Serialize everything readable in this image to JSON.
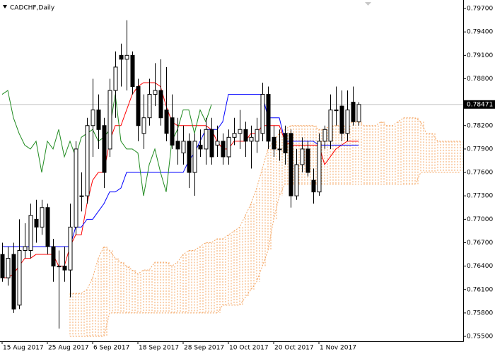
{
  "chart_data": {
    "type": "candlestick",
    "title": "CADCHF,Daily",
    "categories": [
      "15 Aug 2017",
      null,
      null,
      null,
      null,
      null,
      null,
      null,
      "25 Aug 2017",
      null,
      null,
      null,
      null,
      null,
      null,
      null,
      "6 Sep 2017",
      null,
      null,
      null,
      null,
      null,
      null,
      null,
      "18 Sep 2017",
      null,
      null,
      null,
      null,
      null,
      null,
      null,
      "28 Sep 2017",
      null,
      null,
      null,
      null,
      null,
      null,
      null,
      "10 Oct 2017",
      null,
      null,
      null,
      null,
      null,
      null,
      null,
      "20 Oct 2017",
      null,
      null,
      null,
      null,
      null,
      null,
      null,
      "1 Nov 2017",
      null,
      null,
      null,
      null,
      null,
      null,
      null,
      null,
      null,
      null,
      null,
      null,
      null,
      null,
      null,
      null,
      null,
      null,
      null,
      null,
      null,
      null,
      null,
      null,
      null
    ],
    "open": [
      0.7655,
      0.7625,
      0.7655,
      0.759,
      0.766,
      0.766,
      0.77,
      0.769,
      0.7715,
      0.7665,
      0.764,
      0.764,
      0.7635,
      0.769,
      0.773,
      0.773,
      0.782,
      0.784,
      0.782,
      0.779,
      0.7865,
      0.791,
      0.7905,
      0.791,
      0.787,
      0.781,
      0.783,
      0.786,
      0.7865,
      0.784,
      0.783,
      0.78,
      0.7785,
      0.78,
      0.776,
      0.7795,
      0.779,
      0.7815,
      0.7795,
      0.78,
      0.778,
      0.7805,
      0.781,
      0.7815,
      0.78,
      0.78,
      0.781,
      0.786,
      0.7805,
      0.779,
      0.781,
      0.781,
      0.773,
      0.777,
      0.779,
      0.775,
      0.7735,
      0.78,
      0.78,
      0.784,
      0.7845,
      0.781,
      0.785,
      0.7825,
      null,
      null,
      null,
      null,
      null,
      null,
      null,
      null,
      null,
      null,
      null,
      null,
      null,
      null,
      null,
      null,
      null,
      null
    ],
    "high": [
      0.767,
      0.7665,
      0.767,
      0.77,
      0.7695,
      0.772,
      0.7725,
      0.7725,
      0.772,
      0.7675,
      0.766,
      0.7665,
      0.772,
      0.78,
      0.776,
      0.783,
      0.788,
      0.786,
      0.783,
      0.788,
      0.7915,
      0.7925,
      0.7955,
      0.7915,
      0.788,
      0.786,
      0.788,
      0.79,
      0.7905,
      0.7895,
      0.786,
      0.783,
      0.782,
      0.781,
      0.781,
      0.7815,
      0.783,
      0.783,
      0.782,
      0.781,
      0.7815,
      0.783,
      0.784,
      0.7825,
      0.782,
      0.783,
      0.7875,
      0.787,
      0.782,
      0.7815,
      0.782,
      0.7815,
      0.779,
      0.7805,
      0.78,
      0.7765,
      0.781,
      0.782,
      0.786,
      0.787,
      0.7865,
      0.7865,
      0.787,
      0.785,
      null,
      null,
      null,
      null,
      null,
      null,
      null,
      null,
      null,
      null,
      null,
      null,
      null,
      null,
      null,
      null,
      null,
      null
    ],
    "low": [
      0.762,
      0.7615,
      0.758,
      0.7585,
      0.765,
      0.765,
      0.767,
      0.768,
      0.7655,
      0.762,
      0.756,
      0.762,
      0.76,
      0.768,
      0.771,
      0.772,
      0.778,
      0.779,
      0.774,
      0.778,
      0.783,
      0.787,
      0.7865,
      0.786,
      0.78,
      0.779,
      0.782,
      0.7845,
      0.782,
      0.78,
      0.779,
      0.777,
      0.777,
      0.774,
      0.773,
      0.778,
      0.777,
      0.777,
      0.778,
      0.777,
      0.777,
      0.7795,
      0.779,
      0.778,
      0.7765,
      0.7785,
      0.78,
      0.779,
      0.778,
      0.7775,
      0.777,
      0.7715,
      0.7725,
      0.776,
      0.7755,
      0.772,
      0.773,
      0.779,
      0.779,
      0.782,
      0.78,
      0.78,
      0.782,
      0.782,
      null,
      null,
      null,
      null,
      null,
      null,
      null,
      null,
      null,
      null,
      null,
      null,
      null,
      null,
      null,
      null,
      null,
      null
    ],
    "close": [
      0.7625,
      0.765,
      0.7585,
      0.766,
      0.7665,
      0.7705,
      0.769,
      0.7715,
      0.7665,
      0.764,
      0.764,
      0.7635,
      0.769,
      0.779,
      0.773,
      0.782,
      0.784,
      0.7815,
      0.776,
      0.7865,
      0.7895,
      0.7905,
      0.791,
      0.787,
      0.782,
      0.783,
      0.786,
      0.7865,
      0.783,
      0.781,
      0.7795,
      0.779,
      0.78,
      0.776,
      0.78,
      0.779,
      0.7815,
      0.778,
      0.78,
      0.778,
      0.7805,
      0.781,
      0.7815,
      0.78,
      0.7805,
      0.7815,
      0.786,
      0.78,
      0.779,
      0.779,
      0.7785,
      0.773,
      0.777,
      0.779,
      0.776,
      0.7735,
      0.78,
      0.7815,
      0.784,
      0.784,
      0.781,
      0.784,
      0.7825,
      0.7847,
      null,
      null,
      null,
      null,
      null,
      null,
      null,
      null,
      null,
      null,
      null,
      null,
      null,
      null,
      null,
      null,
      null,
      null
    ],
    "lines": [
      {
        "color": "#ff0000",
        "values": [
          0.7625,
          0.7625,
          0.763,
          0.764,
          0.765,
          0.765,
          0.7655,
          0.7655,
          0.7655,
          0.7655,
          0.764,
          0.764,
          0.7665,
          0.768,
          0.768,
          0.772,
          0.775,
          0.776,
          0.776,
          0.78,
          0.782,
          0.782,
          0.784,
          0.786,
          0.787,
          0.7875,
          0.7875,
          0.7875,
          0.787,
          0.7845,
          0.7825,
          0.782,
          0.782,
          0.782,
          0.782,
          0.782,
          0.782,
          0.7815,
          0.78,
          0.779,
          0.779,
          0.78,
          0.78,
          0.78,
          0.781,
          0.781,
          0.782,
          0.782,
          0.782,
          0.782,
          0.78,
          0.7795,
          0.7795,
          0.7795,
          0.7795,
          0.7795,
          0.7795,
          0.777,
          0.778,
          0.779,
          0.7795,
          0.78,
          0.78,
          0.78,
          null,
          null,
          null,
          null,
          null,
          null,
          null,
          null,
          null,
          null,
          null,
          null,
          null,
          null,
          null,
          null,
          null,
          null
        ]
      },
      {
        "color": "#0000ff",
        "values": [
          0.7665,
          0.7665,
          0.7665,
          0.7665,
          0.7665,
          0.7665,
          0.7665,
          0.7665,
          0.7665,
          0.7665,
          0.7665,
          0.7665,
          0.7665,
          0.769,
          0.769,
          0.77,
          0.77,
          0.771,
          0.772,
          0.7735,
          0.7735,
          0.774,
          0.776,
          0.776,
          0.776,
          0.776,
          0.776,
          0.776,
          0.776,
          0.776,
          0.776,
          0.776,
          0.776,
          0.7775,
          0.7785,
          0.78,
          0.7815,
          0.7815,
          0.7815,
          0.7825,
          0.786,
          0.786,
          0.786,
          0.786,
          0.786,
          0.786,
          0.786,
          0.783,
          0.783,
          0.783,
          0.78,
          0.78,
          0.78,
          0.78,
          0.78,
          0.78,
          0.7795,
          0.7795,
          0.7795,
          0.7795,
          0.7795,
          0.7795,
          0.7795,
          0.7795,
          null,
          null,
          null,
          null,
          null,
          null,
          null,
          null,
          null,
          null,
          null,
          null,
          null,
          null,
          null,
          null,
          null,
          null
        ]
      },
      {
        "color": "#1f8a1f",
        "values": [
          0.786,
          0.7865,
          0.783,
          0.781,
          0.7795,
          0.779,
          0.78,
          0.776,
          0.78,
          0.779,
          0.7815,
          0.778,
          0.78,
          0.778,
          0.7805,
          0.781,
          0.7815,
          0.78,
          0.7805,
          0.7815,
          0.786,
          0.78,
          0.779,
          0.779,
          0.7785,
          0.773,
          0.777,
          0.779,
          0.776,
          0.7735,
          0.78,
          0.7815,
          0.784,
          0.784,
          0.781,
          0.784,
          0.7825,
          0.7847,
          null,
          null,
          null,
          null,
          null,
          null,
          null,
          null,
          null,
          null,
          null,
          null,
          null,
          null,
          null,
          null,
          null,
          null,
          null,
          null,
          null,
          null,
          null,
          null,
          null,
          null,
          null,
          null,
          null,
          null,
          null,
          null,
          null,
          null,
          null,
          null,
          null,
          null,
          null,
          null,
          null,
          null,
          null,
          null
        ]
      }
    ],
    "cloud": {
      "color": "#f4a460",
      "upper": [
        null,
        null,
        null,
        null,
        null,
        null,
        null,
        null,
        null,
        null,
        null,
        null,
        0.7605,
        0.7605,
        0.7605,
        0.761,
        0.7625,
        0.765,
        0.7665,
        0.766,
        0.765,
        0.7645,
        0.764,
        0.7635,
        0.763,
        0.7635,
        0.7635,
        0.7645,
        0.7645,
        0.7645,
        0.764,
        0.7645,
        0.7655,
        0.766,
        0.766,
        0.7665,
        0.767,
        0.767,
        0.7675,
        0.7675,
        0.768,
        0.7685,
        0.769,
        0.7705,
        0.772,
        0.774,
        0.7765,
        0.779,
        0.78,
        0.781,
        0.7815,
        0.782,
        0.782,
        0.782,
        0.782,
        0.782,
        0.7815,
        0.7815,
        0.782,
        0.782,
        0.782,
        0.782,
        0.7825,
        0.7825,
        0.782,
        0.782,
        0.782,
        0.7825,
        0.782,
        0.782,
        0.7825,
        0.783,
        0.783,
        0.783,
        0.7825,
        0.781,
        0.781,
        0.78,
        0.78,
        0.78,
        0.78,
        0.78
      ],
      "lower": [
        null,
        null,
        null,
        null,
        null,
        null,
        null,
        null,
        null,
        null,
        null,
        null,
        0.755,
        0.755,
        0.755,
        0.755,
        0.755,
        0.755,
        0.755,
        0.758,
        0.758,
        0.758,
        0.758,
        0.758,
        0.758,
        0.758,
        0.758,
        0.758,
        0.758,
        0.758,
        0.758,
        0.758,
        0.758,
        0.758,
        0.758,
        0.758,
        0.758,
        0.758,
        0.758,
        0.759,
        0.759,
        0.759,
        0.759,
        0.76,
        0.761,
        0.762,
        0.764,
        0.766,
        0.77,
        0.773,
        0.7745,
        0.7745,
        0.7745,
        0.7745,
        0.7745,
        0.7745,
        0.7745,
        0.7745,
        0.7745,
        0.7745,
        0.7745,
        0.7745,
        0.7745,
        0.7745,
        0.7745,
        0.7745,
        0.7745,
        0.7745,
        0.7745,
        0.7745,
        0.7745,
        0.7745,
        0.7745,
        0.7745,
        0.776,
        0.776,
        0.776,
        0.776,
        0.776,
        0.776,
        0.776,
        0.776
      ]
    },
    "last_price": {
      "value": 0.78471,
      "label": "0.78471"
    },
    "ylim": [
      0.75437,
      0.79809
    ],
    "yticks": [
      {
        "value": 0.797,
        "label": "0.79700"
      },
      {
        "value": 0.794,
        "label": "0.79400"
      },
      {
        "value": 0.791,
        "label": "0.79100"
      },
      {
        "value": 0.788,
        "label": "0.78800"
      },
      {
        "value": 0.782,
        "label": "0.78200"
      },
      {
        "value": 0.779,
        "label": "0.77900"
      },
      {
        "value": 0.776,
        "label": "0.77600"
      },
      {
        "value": 0.773,
        "label": "0.77300"
      },
      {
        "value": 0.77,
        "label": "0.77000"
      },
      {
        "value": 0.767,
        "label": "0.76700"
      },
      {
        "value": 0.764,
        "label": "0.76400"
      },
      {
        "value": 0.761,
        "label": "0.76100"
      },
      {
        "value": 0.758,
        "label": "0.75800"
      },
      {
        "value": 0.755,
        "label": "0.75500"
      }
    ]
  }
}
